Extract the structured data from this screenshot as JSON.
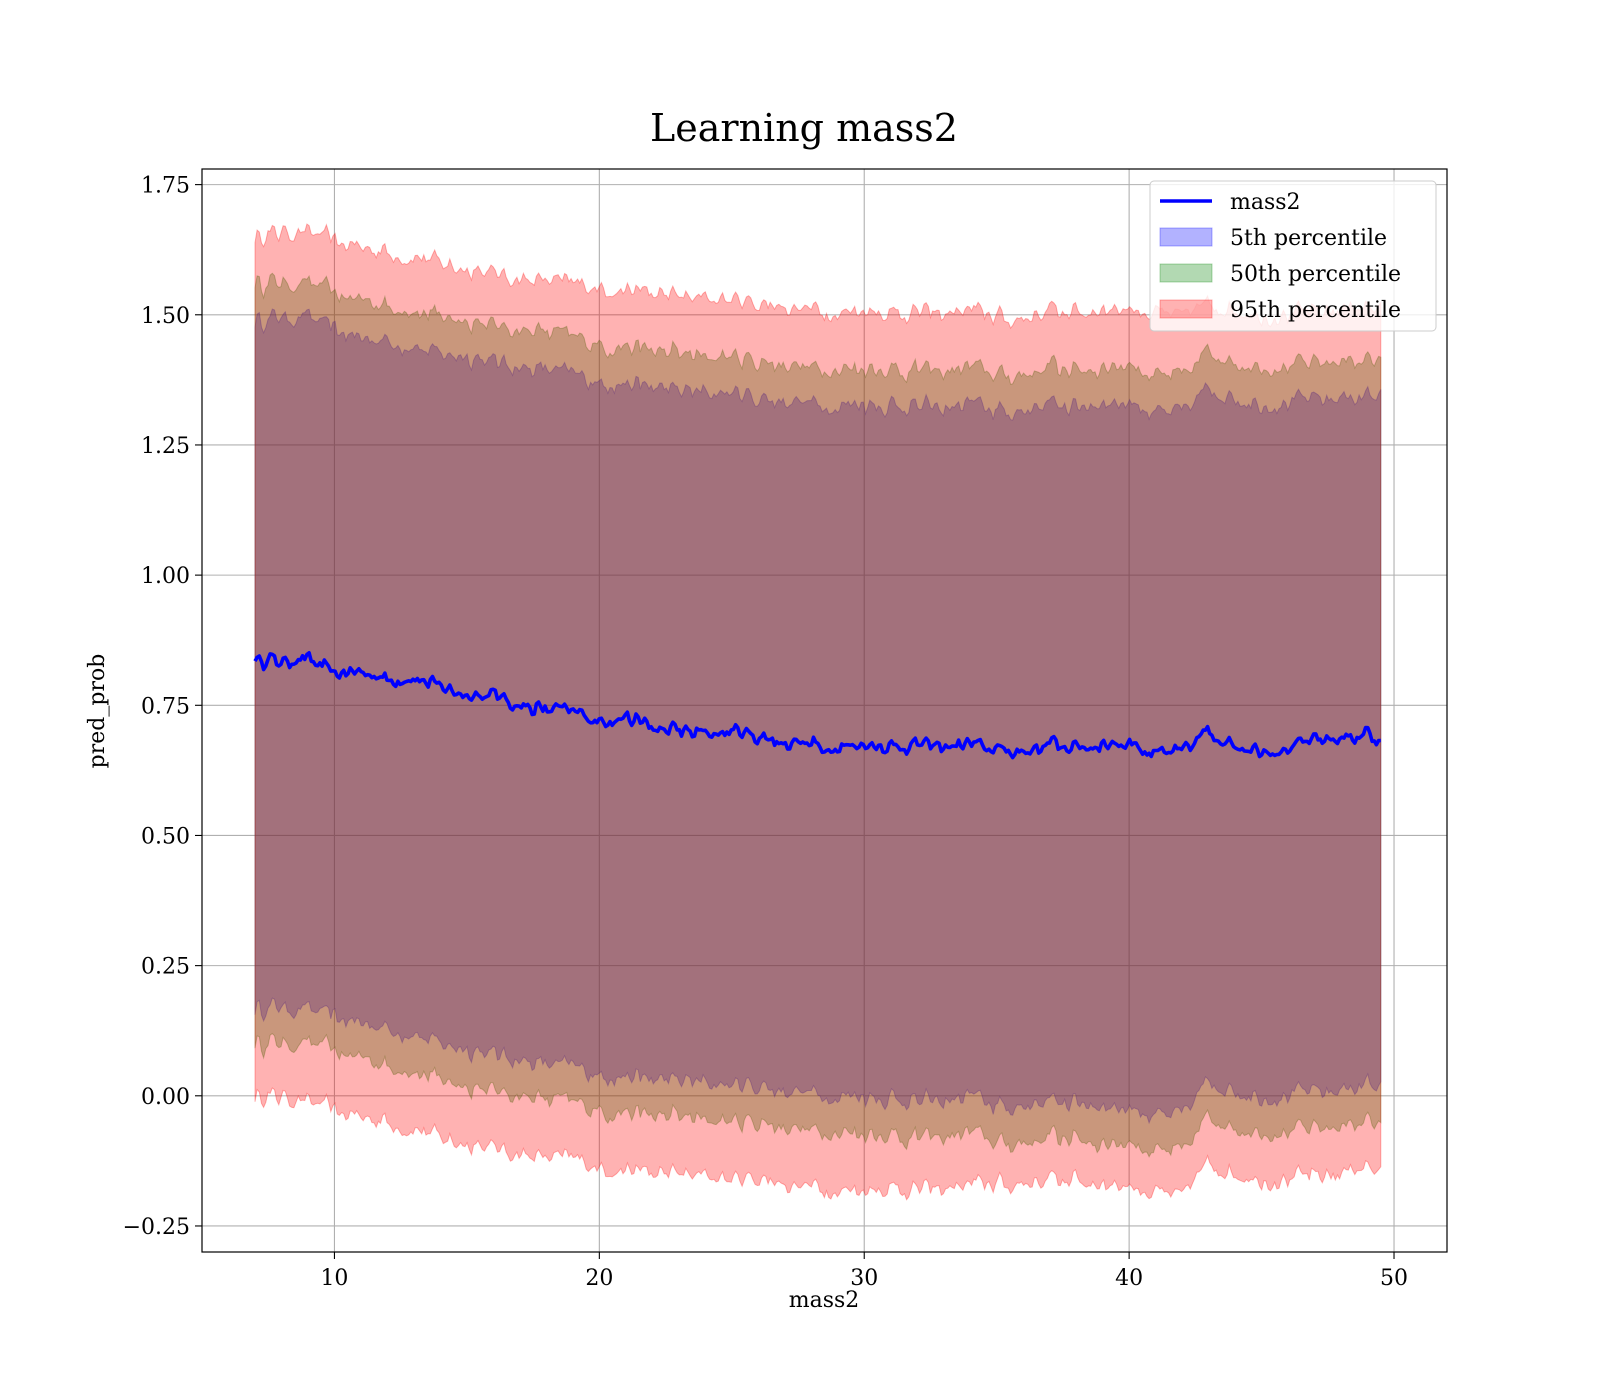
{
  "chart_data": {
    "type": "area",
    "title": "Learning mass2",
    "xlabel": "mass2",
    "ylabel": "pred_prob",
    "xlim": [
      5,
      52
    ],
    "ylim": [
      -0.3,
      1.78
    ],
    "x_ticks": [
      10,
      20,
      30,
      40,
      50
    ],
    "x_tick_labels": [
      "10",
      "20",
      "30",
      "40",
      "50"
    ],
    "y_ticks": [
      -0.25,
      0,
      0.25,
      0.5,
      0.75,
      1.0,
      1.25,
      1.5,
      1.75
    ],
    "y_tick_labels": [
      "−0.25",
      "0.00",
      "0.25",
      "0.50",
      "0.75",
      "1.00",
      "1.25",
      "1.50",
      "1.75"
    ],
    "grid": true,
    "legend_position": "top-right",
    "x": [
      7.0,
      8.0,
      9.0,
      10.0,
      11.0,
      12.0,
      13.0,
      14.0,
      15.0,
      16.0,
      17.0,
      18.0,
      19.0,
      20.0,
      21.0,
      22.0,
      23.0,
      24.0,
      25.0,
      26.0,
      27.0,
      28.0,
      29.0,
      30.0,
      31.0,
      32.0,
      33.0,
      34.0,
      35.0,
      36.0,
      37.0,
      38.0,
      39.0,
      40.0,
      41.0,
      42.0,
      43.0,
      44.0,
      45.0,
      46.0,
      47.0,
      48.0,
      49.0,
      49.5
    ],
    "series": [
      {
        "name": "mass2",
        "kind": "line",
        "color": "#0000ff",
        "values": [
          0.84,
          0.835,
          0.84,
          0.81,
          0.815,
          0.8,
          0.8,
          0.785,
          0.77,
          0.77,
          0.75,
          0.74,
          0.74,
          0.72,
          0.73,
          0.705,
          0.7,
          0.695,
          0.7,
          0.69,
          0.68,
          0.675,
          0.67,
          0.675,
          0.67,
          0.675,
          0.67,
          0.675,
          0.665,
          0.66,
          0.675,
          0.67,
          0.675,
          0.68,
          0.655,
          0.66,
          0.7,
          0.675,
          0.665,
          0.665,
          0.68,
          0.685,
          0.7,
          0.665
        ]
      },
      {
        "name": "5th percentile",
        "kind": "band",
        "color": "#0000ff",
        "lower": [
          0.17,
          0.17,
          0.165,
          0.15,
          0.14,
          0.13,
          0.115,
          0.1,
          0.09,
          0.08,
          0.07,
          0.06,
          0.06,
          0.04,
          0.04,
          0.03,
          0.03,
          0.025,
          0.02,
          0.02,
          0.01,
          0.005,
          0.0,
          0.0,
          -0.005,
          -0.01,
          -0.01,
          0.0,
          -0.02,
          -0.02,
          -0.01,
          -0.01,
          -0.02,
          -0.02,
          -0.04,
          -0.04,
          0.03,
          0.01,
          0.0,
          0.0,
          0.005,
          0.01,
          0.03,
          0.0
        ],
        "upper": [
          1.49,
          1.495,
          1.495,
          1.47,
          1.455,
          1.45,
          1.435,
          1.425,
          1.42,
          1.41,
          1.4,
          1.395,
          1.39,
          1.37,
          1.37,
          1.36,
          1.355,
          1.35,
          1.35,
          1.34,
          1.335,
          1.33,
          1.325,
          1.33,
          1.325,
          1.325,
          1.32,
          1.33,
          1.315,
          1.315,
          1.33,
          1.325,
          1.33,
          1.335,
          1.31,
          1.31,
          1.36,
          1.34,
          1.33,
          1.33,
          1.335,
          1.34,
          1.35,
          1.33
        ]
      },
      {
        "name": "50th percentile",
        "kind": "band",
        "color": "#008000",
        "lower": [
          0.1,
          0.1,
          0.1,
          0.085,
          0.075,
          0.06,
          0.045,
          0.03,
          0.02,
          0.01,
          0.0,
          -0.01,
          -0.01,
          -0.03,
          -0.03,
          -0.04,
          -0.04,
          -0.045,
          -0.05,
          -0.05,
          -0.06,
          -0.065,
          -0.07,
          -0.07,
          -0.075,
          -0.08,
          -0.08,
          -0.07,
          -0.09,
          -0.09,
          -0.08,
          -0.08,
          -0.09,
          -0.09,
          -0.11,
          -0.11,
          -0.04,
          -0.06,
          -0.07,
          -0.07,
          -0.065,
          -0.06,
          -0.04,
          -0.07
        ],
        "upper": [
          1.56,
          1.56,
          1.56,
          1.54,
          1.53,
          1.52,
          1.505,
          1.495,
          1.49,
          1.48,
          1.47,
          1.465,
          1.46,
          1.44,
          1.44,
          1.43,
          1.425,
          1.42,
          1.42,
          1.41,
          1.405,
          1.4,
          1.395,
          1.4,
          1.395,
          1.395,
          1.39,
          1.4,
          1.385,
          1.385,
          1.4,
          1.395,
          1.4,
          1.405,
          1.38,
          1.38,
          1.43,
          1.41,
          1.4,
          1.4,
          1.405,
          1.41,
          1.42,
          1.4
        ]
      },
      {
        "name": "95th percentile",
        "kind": "band",
        "color": "#ff0000",
        "lower": [
          0.0,
          0.0,
          -0.01,
          -0.03,
          -0.04,
          -0.05,
          -0.065,
          -0.08,
          -0.09,
          -0.1,
          -0.11,
          -0.12,
          -0.12,
          -0.14,
          -0.14,
          -0.15,
          -0.15,
          -0.155,
          -0.16,
          -0.16,
          -0.17,
          -0.175,
          -0.18,
          -0.18,
          -0.175,
          -0.18,
          -0.18,
          -0.17,
          -0.17,
          -0.17,
          -0.16,
          -0.16,
          -0.17,
          -0.17,
          -0.19,
          -0.19,
          -0.13,
          -0.15,
          -0.16,
          -0.16,
          -0.155,
          -0.15,
          -0.13,
          -0.16
        ],
        "upper": [
          1.65,
          1.66,
          1.66,
          1.64,
          1.63,
          1.62,
          1.61,
          1.6,
          1.59,
          1.58,
          1.57,
          1.565,
          1.56,
          1.55,
          1.55,
          1.54,
          1.535,
          1.53,
          1.53,
          1.52,
          1.515,
          1.51,
          1.505,
          1.51,
          1.505,
          1.505,
          1.5,
          1.51,
          1.495,
          1.49,
          1.51,
          1.505,
          1.51,
          1.515,
          1.5,
          1.5,
          1.52,
          1.51,
          1.5,
          1.5,
          1.505,
          1.51,
          1.52,
          1.5
        ]
      }
    ]
  }
}
